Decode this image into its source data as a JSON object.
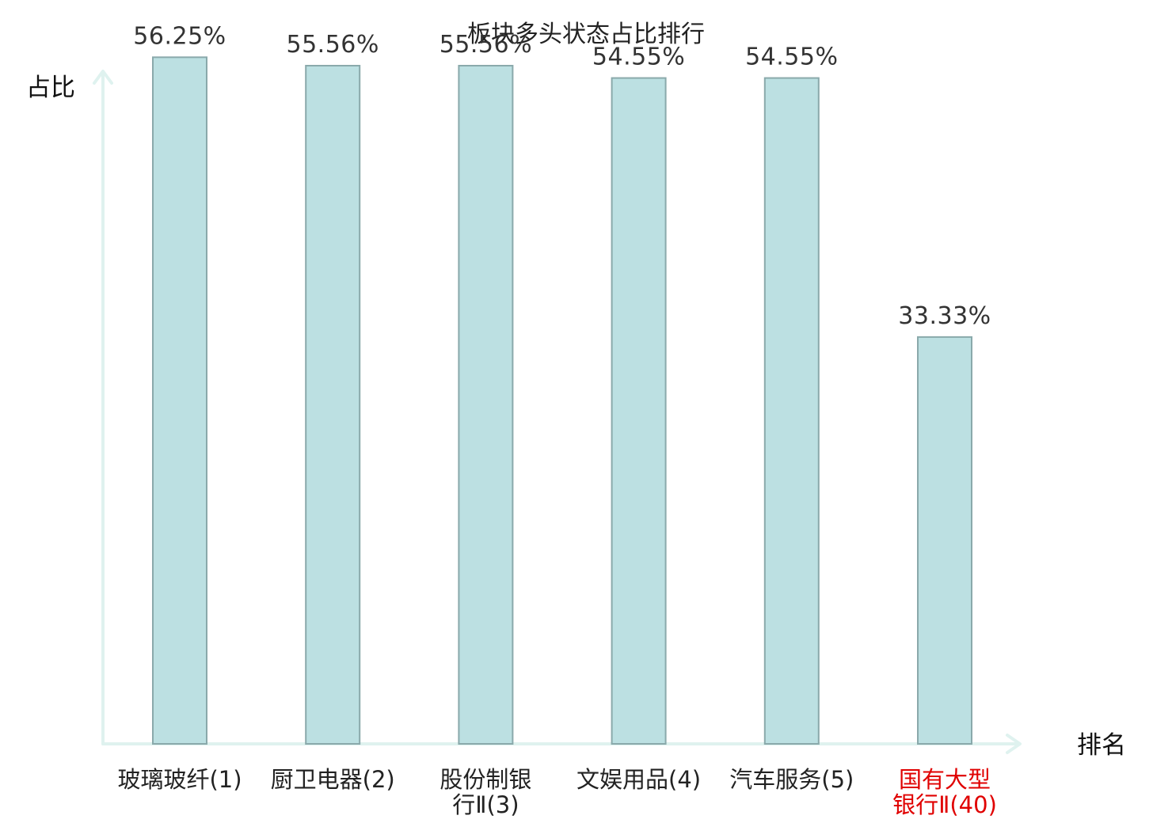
{
  "chart_data": {
    "type": "bar",
    "title": "板块多头状态占比排行",
    "ylabel": "占比",
    "xlabel": "排名",
    "categories": [
      [
        "玻璃玻纤(1)"
      ],
      [
        "厨卫电器(2)"
      ],
      [
        "股份制银",
        "行Ⅱ(3)"
      ],
      [
        "文娱用品(4)"
      ],
      [
        "汽车服务(5)"
      ],
      [
        "国有大型",
        "银行Ⅱ(40)"
      ]
    ],
    "values": [
      56.25,
      55.56,
      55.56,
      54.55,
      54.55,
      33.33
    ],
    "value_labels": [
      "56.25%",
      "55.56%",
      "55.56%",
      "54.55%",
      "54.55%",
      "33.33%"
    ],
    "ylim": [
      0,
      60
    ],
    "grid": false,
    "highlight_index": 5,
    "colors": {
      "bar_fill": "#bce0e2",
      "bar_stroke": "#8aa9ab",
      "axis": "#dff2ef",
      "highlight_text": "#e00000",
      "label_text": "#222222"
    }
  }
}
